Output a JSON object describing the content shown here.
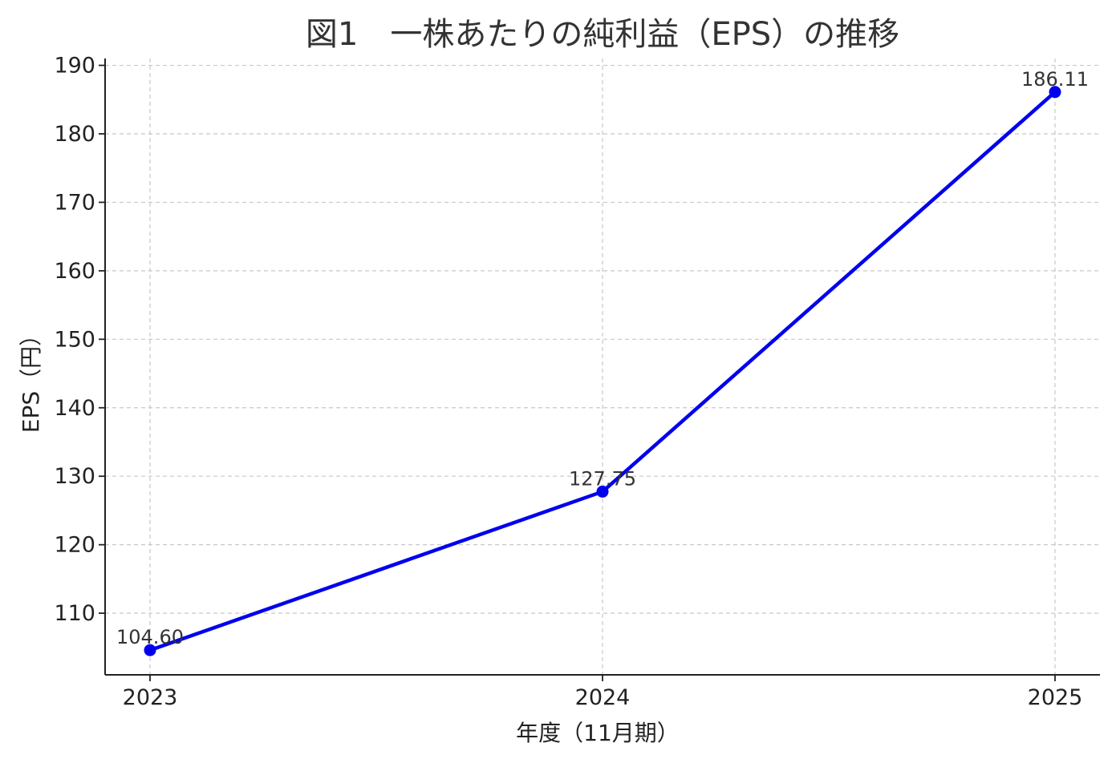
{
  "chart_data": {
    "type": "line",
    "title": "図1　一株あたりの純利益（EPS）の推移",
    "xlabel": "年度（11月期）",
    "ylabel": "EPS（円）",
    "categories": [
      "2023",
      "2024",
      "2025"
    ],
    "series": [
      {
        "values": [
          104.6,
          127.75,
          186.11
        ],
        "data_labels": [
          "104.60",
          "127.75",
          "186.11"
        ],
        "color": "#0000ee",
        "marker": "circle"
      }
    ],
    "ylim": [
      101,
      191
    ],
    "y_ticks": [
      110,
      120,
      130,
      140,
      150,
      160,
      170,
      180,
      190
    ],
    "y_tick_labels": [
      "110",
      "120",
      "130",
      "140",
      "150",
      "160",
      "170",
      "180",
      "190"
    ],
    "grid": true,
    "grid_style": "dashed",
    "legend": false
  }
}
